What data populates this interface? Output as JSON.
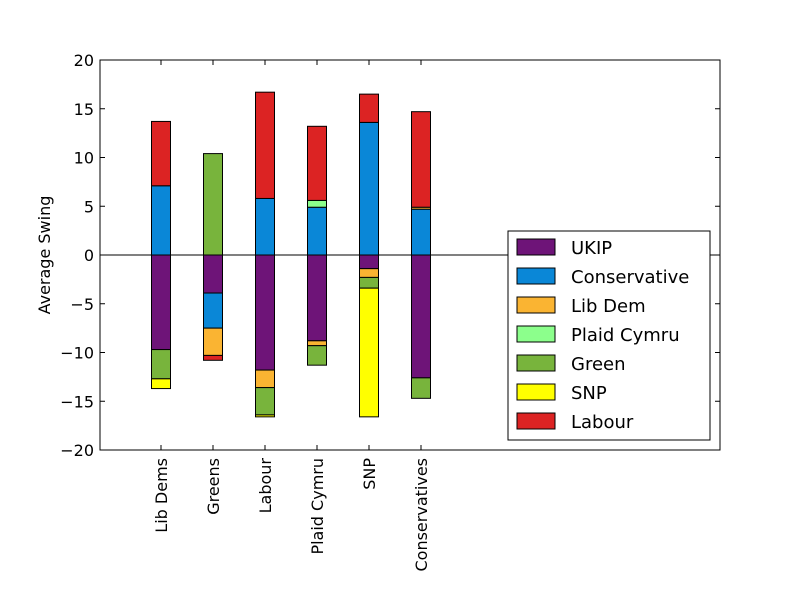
{
  "chart_data": {
    "type": "bar",
    "stacked": true,
    "title": "",
    "xlabel": "",
    "ylabel": "Average Swing",
    "ylim": [
      -20,
      20
    ],
    "yticks": [
      -20,
      -15,
      -10,
      -5,
      0,
      5,
      10,
      15,
      20
    ],
    "ytick_labels": [
      "−20",
      "−15",
      "−10",
      "−5",
      "0",
      "5",
      "10",
      "15",
      "20"
    ],
    "categories": [
      "Lib Dems",
      "Greens",
      "Labour",
      "Plaid Cymru",
      "SNP",
      "Conservatives"
    ],
    "grid": false,
    "legend_position": "lower-right",
    "series": [
      {
        "name": "UKIP",
        "color": "#6e1478",
        "values": [
          -9.7,
          -3.9,
          -11.8,
          -8.8,
          -1.4,
          -12.6
        ]
      },
      {
        "name": "Conservative",
        "color": "#0a87d7",
        "values": [
          7.1,
          -3.6,
          5.8,
          4.9,
          13.6,
          4.7
        ]
      },
      {
        "name": "Lib Dem",
        "color": "#fab432",
        "values": [
          0,
          -2.8,
          -1.8,
          -0.5,
          -0.9,
          0.2
        ]
      },
      {
        "name": "Plaid Cymru",
        "color": "#8cff8c",
        "values": [
          0,
          0,
          0,
          0.7,
          0,
          0
        ]
      },
      {
        "name": "Green",
        "color": "#78b43c",
        "values": [
          -3.0,
          10.4,
          -2.8,
          -2.0,
          -1.1,
          -2.1
        ]
      },
      {
        "name": "SNP",
        "color": "#ffff00",
        "values": [
          -1.0,
          0,
          -0.2,
          0,
          -13.2,
          0
        ]
      },
      {
        "name": "Labour",
        "color": "#dc2323",
        "values": [
          6.6,
          -0.5,
          10.9,
          7.6,
          2.9,
          9.8
        ]
      }
    ]
  }
}
